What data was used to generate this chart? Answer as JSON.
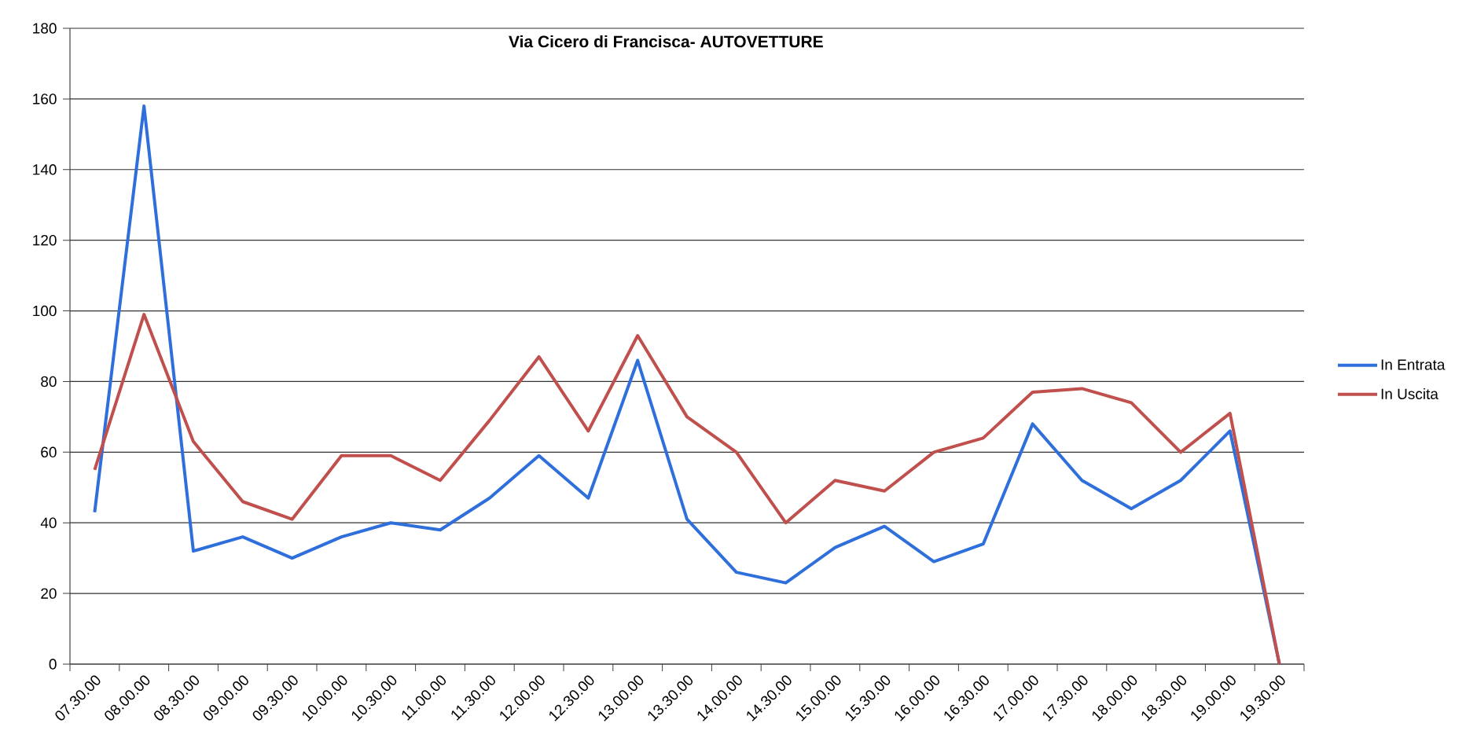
{
  "chart_data": {
    "type": "line",
    "title": "Via Cicero di Francisca- AUTOVETTURE",
    "categories": [
      "07.30.00",
      "08.00.00",
      "08.30.00",
      "09.00.00",
      "09.30.00",
      "10.00.00",
      "10.30.00",
      "11.00.00",
      "11.30.00",
      "12.00.00",
      "12.30.00",
      "13.00.00",
      "13.30.00",
      "14.00.00",
      "14.30.00",
      "15.00.00",
      "15.30.00",
      "16.00.00",
      "16.30.00",
      "17.00.00",
      "17.30.00",
      "18.00.00",
      "18.30.00",
      "19.00.00",
      "19.30.00"
    ],
    "series": [
      {
        "name": "In Entrata",
        "color": "#2f6fdc",
        "values": [
          43,
          158,
          32,
          36,
          30,
          36,
          40,
          38,
          47,
          59,
          47,
          86,
          41,
          26,
          23,
          33,
          39,
          29,
          34,
          68,
          52,
          44,
          52,
          66,
          0
        ]
      },
      {
        "name": "In Uscita",
        "color": "#c0504d",
        "values": [
          55,
          99,
          63,
          46,
          41,
          59,
          59,
          52,
          69,
          87,
          66,
          93,
          70,
          60,
          40,
          52,
          49,
          60,
          64,
          77,
          78,
          74,
          60,
          71,
          0
        ]
      }
    ],
    "ylim": [
      0,
      180
    ],
    "yticks": [
      0,
      20,
      40,
      60,
      80,
      100,
      120,
      140,
      160,
      180
    ],
    "grid": "y",
    "legend": "right",
    "line_style": "solid"
  }
}
